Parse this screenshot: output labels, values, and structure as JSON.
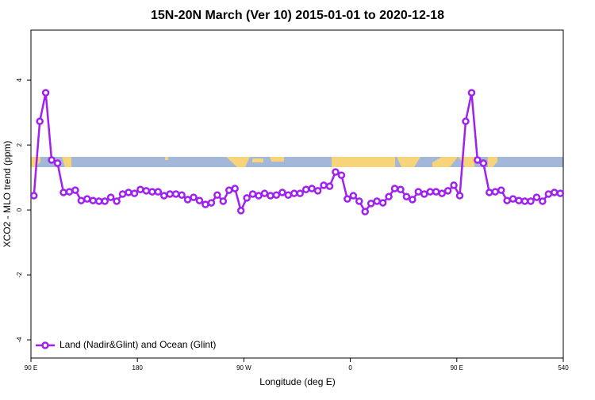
{
  "chart_data": {
    "type": "line",
    "title": "15N-20N March (Ver 10)   2015-01-01 to 2020-12-18",
    "x_label": "Longitude (deg E)",
    "y_label": "XCO2 - MLO trend (ppm)",
    "x": [
      92.5,
      97.5,
      102.5,
      107.5,
      112.5,
      117.5,
      122.5,
      127.5,
      132.5,
      137.5,
      142.5,
      147.5,
      152.5,
      157.5,
      162.5,
      167.5,
      172.5,
      177.5,
      182.5,
      187.5,
      192.5,
      197.5,
      202.5,
      207.5,
      212.5,
      217.5,
      222.5,
      227.5,
      232.5,
      237.5,
      242.5,
      247.5,
      252.5,
      257.5,
      262.5,
      267.5,
      272.5,
      277.5,
      282.5,
      287.5,
      292.5,
      297.5,
      302.5,
      307.5,
      312.5,
      317.5,
      322.5,
      327.5,
      332.5,
      337.5,
      342.5,
      347.5,
      352.5,
      357.5,
      362.5,
      367.5,
      372.5,
      377.5,
      382.5,
      387.5,
      392.5,
      397.5,
      402.5,
      407.5,
      412.5,
      417.5,
      422.5,
      427.5,
      432.5,
      437.5,
      442.5,
      447.5,
      452.5,
      457.5,
      462.5,
      467.5,
      472.5,
      477.5,
      482.5,
      487.5,
      492.5,
      497.5,
      502.5,
      507.5,
      512.5,
      517.5,
      522.5,
      527.5,
      532.5,
      537.5
    ],
    "series": [
      {
        "name": "Land (Nadir&Glint) and Ocean (Glint)",
        "color": "#a020f0",
        "values": [
          0.44,
          2.73,
          3.61,
          1.54,
          1.44,
          0.54,
          0.56,
          0.61,
          0.29,
          0.34,
          0.29,
          0.27,
          0.27,
          0.39,
          0.27,
          0.49,
          0.54,
          0.51,
          0.63,
          0.59,
          0.56,
          0.56,
          0.44,
          0.49,
          0.49,
          0.46,
          0.32,
          0.39,
          0.29,
          0.17,
          0.22,
          0.46,
          0.27,
          0.61,
          0.66,
          -0.02,
          0.37,
          0.49,
          0.44,
          0.51,
          0.44,
          0.46,
          0.54,
          0.46,
          0.51,
          0.51,
          0.63,
          0.66,
          0.59,
          0.76,
          0.73,
          1.17,
          1.07,
          0.34,
          0.44,
          0.27,
          -0.05,
          0.2,
          0.27,
          0.22,
          0.41,
          0.66,
          0.63,
          0.41,
          0.32,
          0.56,
          0.49,
          0.56,
          0.56,
          0.51,
          0.59,
          0.76,
          0.44,
          2.73,
          3.61,
          1.54,
          1.44,
          0.54,
          0.56,
          0.61,
          0.29,
          0.34,
          0.29,
          0.27,
          0.27,
          0.39,
          0.27,
          0.49,
          0.54,
          0.51
        ]
      }
    ],
    "xlim": [
      90,
      540
    ],
    "xticks": [
      {
        "value": 90,
        "label": "90 E"
      },
      180,
      {
        "value": 270,
        "label": "90 W"
      },
      {
        "value": 360,
        "label": "0"
      },
      {
        "value": 450,
        "label": "90 E"
      },
      540
    ],
    "ylim": [
      -4.56,
      5.54
    ],
    "yticks": [
      -4,
      -2,
      0,
      2,
      4
    ],
    "legend": "bottomleft"
  }
}
